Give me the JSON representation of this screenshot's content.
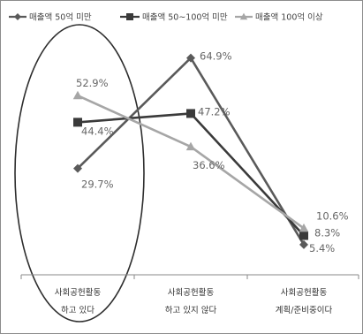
{
  "chart_data": {
    "type": "line",
    "categories": [
      [
        "사회공헌활동",
        "하고 있다"
      ],
      [
        "사회공헌활동",
        "하고 있지 않다"
      ],
      [
        "사회공헌활동",
        "계획/준비중이다"
      ]
    ],
    "series": [
      {
        "name": "매출액 50억 미만",
        "values": [
          29.7,
          64.9,
          5.4
        ],
        "labels": [
          "29.7%",
          "64.9%",
          "5.4%"
        ],
        "color": "#5a5a5a",
        "marker": "diamond"
      },
      {
        "name": "매출액 50~100억 미만",
        "values": [
          44.4,
          47.2,
          8.3
        ],
        "labels": [
          "44.4%",
          "47.2%",
          "8.3%"
        ],
        "color": "#3a3a3a",
        "marker": "square"
      },
      {
        "name": "매출액 100억 이상",
        "values": [
          52.9,
          36.6,
          10.6
        ],
        "labels": [
          "52.9%",
          "36.6%",
          "10.6%"
        ],
        "color": "#a6a6a6",
        "marker": "triangle"
      }
    ],
    "ylim": [
      0,
      75
    ],
    "legend": "top",
    "grid": false,
    "annotation": "ellipse around first category"
  }
}
